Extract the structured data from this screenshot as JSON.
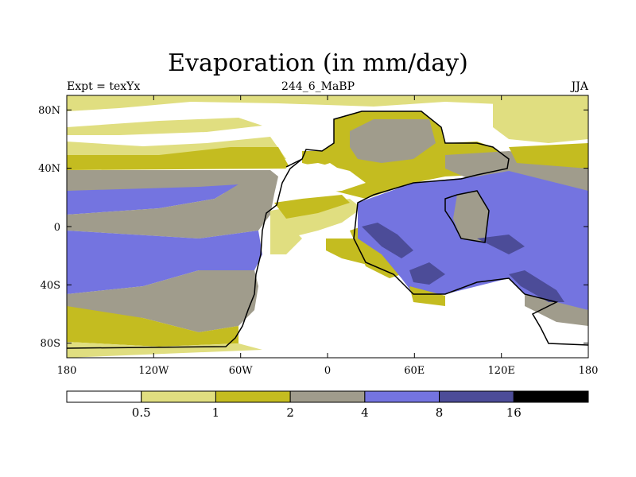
{
  "title": "Evaporation (in mm/day)",
  "subtitle_left": "Expt = texYx",
  "subtitle_center": "244_6_MaBP",
  "subtitle_right": "JJA",
  "y_ticks": [
    "80N",
    "40N",
    "0",
    "40S",
    "80S"
  ],
  "x_ticks": [
    "180",
    "120W",
    "60W",
    "0",
    "60E",
    "120E",
    "180"
  ],
  "colorbar": {
    "colors": [
      "#ffffff",
      "#e0de80",
      "#c4bc20",
      "#a09c8c",
      "#7474e0",
      "#4c4c98",
      "#000000"
    ],
    "labels": [
      "0.5",
      "1",
      "2",
      "4",
      "8",
      "16"
    ]
  },
  "palette": {
    "lt": "#e0de80",
    "yl": "#c4bc20",
    "gy": "#a09c8c",
    "bl": "#7474e0",
    "db": "#4c4c98",
    "land_outline": "#000000"
  }
}
